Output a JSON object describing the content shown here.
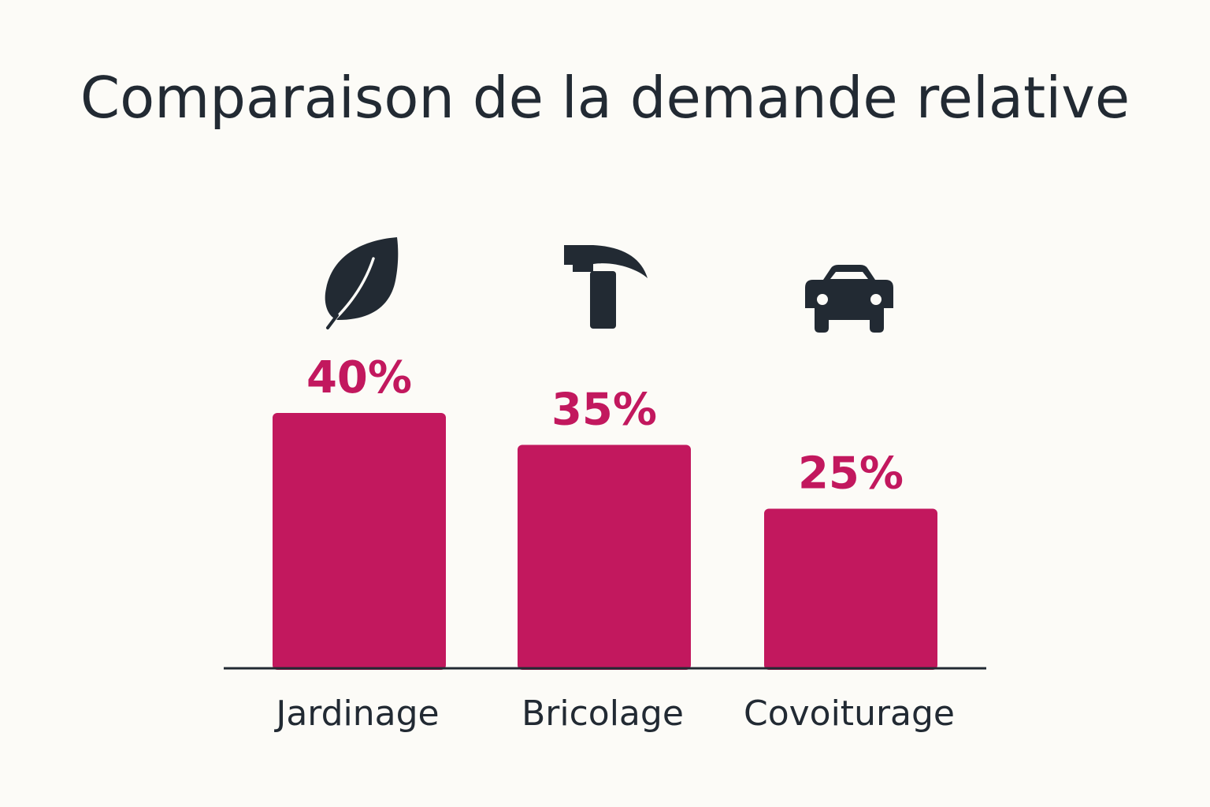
{
  "chart_data": {
    "type": "bar",
    "title": "Comparaison de la demande relative",
    "categories": [
      "Jardinage",
      "Bricolage",
      "Covoiturage"
    ],
    "values": [
      40,
      35,
      25
    ],
    "value_labels": [
      "40%",
      "35%",
      "25%"
    ],
    "icons": [
      "leaf-icon",
      "hammer-icon",
      "car-icon"
    ],
    "xlabel": "",
    "ylabel": "",
    "grid": false,
    "legend": "none"
  },
  "colors": {
    "background": "#fcfbf7",
    "bar": "#c2185e",
    "value_label": "#c2185e",
    "text": "#222a33",
    "axis": "#222a33"
  }
}
